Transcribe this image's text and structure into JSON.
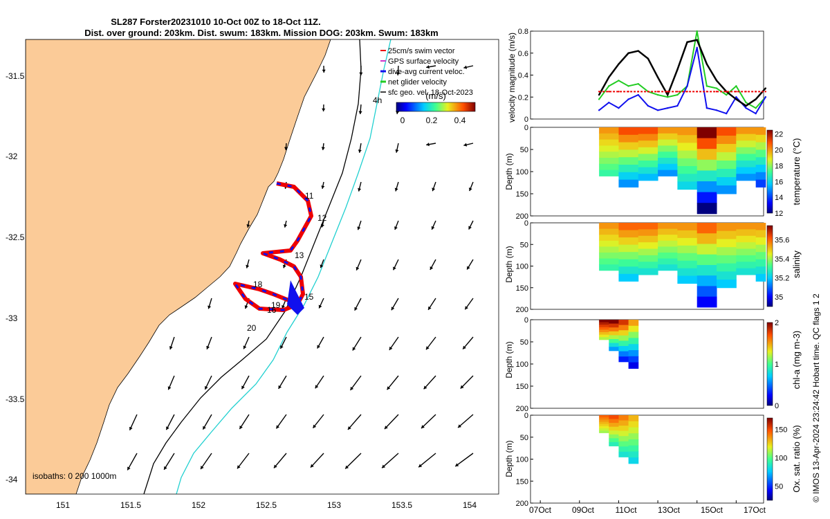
{
  "title": {
    "line1": "SL287 Forster20231010 10-Oct 00Z to 18-Oct 11Z.",
    "line2": "Dist. over ground: 203km. Dist. swum: 183km. Mission DOG: 203km. Swum: 183km"
  },
  "map": {
    "legend": [
      "25cm/s swim vector",
      "GPS surface velocity",
      "dive-avg current veloc.",
      "net glider velocity",
      "sfc geo. vel. 18-Oct-2023"
    ],
    "colorbar_label": "(m/s)",
    "colorbar_ticks": [
      "0",
      "0.2",
      "0.4"
    ],
    "isobaths_label": "isobaths: 0   200  1000m",
    "day_labels": [
      "4h",
      "11",
      "12",
      "13",
      "15",
      "18",
      "19",
      "16",
      "20"
    ],
    "x_ticks": [
      "151",
      "151.5",
      "152",
      "152.5",
      "153",
      "153.5",
      "154"
    ],
    "y_ticks": [
      "-31.5",
      "-32",
      "-32.5",
      "-33",
      "-33.5",
      "-34"
    ],
    "colors": {
      "land": "#fbcb98",
      "isobath_200": "#000000",
      "isobath_1000": "#20d0d0",
      "track_red": "#ee0000",
      "track_blue": "#1010ee",
      "track_green": "#22cc22"
    }
  },
  "panels": {
    "velocity": {
      "ylabel": "velocity magnitude (m/s)",
      "y_ticks": [
        "0",
        "0.2",
        "0.4",
        "0.6",
        "0.8"
      ]
    },
    "temperature": {
      "ylabel": "Depth (m)",
      "cb_label": "temperature (°C)",
      "cb_ticks": [
        "12",
        "14",
        "16",
        "18",
        "20",
        "22"
      ],
      "y_ticks": [
        "0",
        "50",
        "100",
        "150",
        "200"
      ]
    },
    "salinity": {
      "ylabel": "Depth (m)",
      "cb_label": "salinity",
      "cb_ticks": [
        "35",
        "35.2",
        "35.4",
        "35.6"
      ],
      "y_ticks": [
        "0",
        "50",
        "100",
        "150",
        "200"
      ]
    },
    "chla": {
      "ylabel": "Depth (m)",
      "cb_label": "chl-a (mg m-3)",
      "cb_ticks": [
        "0",
        "1",
        "2"
      ],
      "y_ticks": [
        "0",
        "50",
        "100",
        "150",
        "200"
      ]
    },
    "oxygen": {
      "ylabel": "Depth (m)",
      "cb_label": "Ox. sat. ratio (%)",
      "cb_ticks": [
        "50",
        "100",
        "150"
      ],
      "y_ticks": [
        "0",
        "50",
        "100",
        "150",
        "200"
      ]
    },
    "x_ticks": [
      "07Oct",
      "09Oct",
      "11Oct",
      "13Oct",
      "15Oct",
      "17Oct"
    ]
  },
  "credit": "© IMOS 13-Apr-2024 23:24:42 Hobart time. QC flags 1  2",
  "chart_data": [
    {
      "type": "line",
      "title": "",
      "xlabel": "",
      "ylabel": "velocity magnitude (m/s)",
      "ylim": [
        0,
        0.8
      ],
      "x": [
        "10Oct",
        "10.5Oct",
        "11Oct",
        "11.5Oct",
        "12Oct",
        "12.5Oct",
        "13Oct",
        "13.5Oct",
        "14Oct",
        "14.5Oct",
        "15Oct",
        "15.5Oct",
        "16Oct",
        "16.5Oct",
        "17Oct",
        "17.5Oct",
        "18Oct",
        "18.5Oct"
      ],
      "series": [
        {
          "name": "net glider velocity",
          "color": "#22cc22",
          "values": [
            0.18,
            0.3,
            0.35,
            0.3,
            0.32,
            0.25,
            0.22,
            0.2,
            0.22,
            0.3,
            0.8,
            0.3,
            0.28,
            0.22,
            0.3,
            0.15,
            0.1,
            0.2
          ]
        },
        {
          "name": "dive-avg current veloc.",
          "color": "#1010ee",
          "values": [
            0.08,
            0.15,
            0.1,
            0.18,
            0.22,
            0.12,
            0.08,
            0.1,
            0.12,
            0.3,
            0.65,
            0.1,
            0.08,
            0.05,
            0.2,
            0.1,
            0.05,
            0.2
          ]
        },
        {
          "name": "sfc geo. vel.",
          "color": "#000000",
          "values": [
            0.22,
            0.38,
            0.5,
            0.6,
            0.62,
            0.55,
            0.38,
            0.22,
            0.45,
            0.7,
            0.72,
            0.5,
            0.35,
            0.25,
            0.18,
            0.12,
            0.18,
            0.28
          ]
        },
        {
          "name": "25cm/s swim vector",
          "color": "#ee0000",
          "values": [
            0.25,
            0.25,
            0.25,
            0.25,
            0.25,
            0.25,
            0.25,
            0.25,
            0.25,
            0.25,
            0.25,
            0.25,
            0.25,
            0.25,
            0.25,
            0.25,
            0.25,
            0.25
          ]
        }
      ]
    },
    {
      "type": "heatmap",
      "title": "",
      "ylabel": "Depth (m)",
      "cb_label": "temperature (°C)",
      "ylim": [
        200,
        0
      ],
      "clim": [
        12,
        22.5
      ],
      "x": [
        "10Oct",
        "11Oct",
        "12Oct",
        "13Oct",
        "14Oct",
        "15Oct",
        "16Oct",
        "17Oct",
        "18Oct"
      ],
      "max_depth": [
        110,
        135,
        120,
        110,
        140,
        195,
        150,
        120,
        135
      ],
      "surface_values": [
        20,
        21,
        21,
        20,
        20,
        22.5,
        21,
        20,
        20
      ],
      "bottom_values": [
        17,
        15,
        15.5,
        15,
        16,
        12,
        15,
        15,
        14
      ]
    },
    {
      "type": "heatmap",
      "title": "",
      "ylabel": "Depth (m)",
      "cb_label": "salinity",
      "ylim": [
        200,
        0
      ],
      "clim": [
        34.9,
        35.75
      ],
      "x": [
        "10Oct",
        "11Oct",
        "12Oct",
        "13Oct",
        "14Oct",
        "15Oct",
        "16Oct",
        "17Oct",
        "18Oct"
      ],
      "max_depth": [
        110,
        135,
        120,
        110,
        140,
        195,
        150,
        120,
        135
      ],
      "surface_values": [
        35.55,
        35.6,
        35.6,
        35.55,
        35.55,
        35.6,
        35.55,
        35.55,
        35.55
      ],
      "bottom_values": [
        35.3,
        35.2,
        35.25,
        35.25,
        35.2,
        35.0,
        35.2,
        35.25,
        35.2
      ]
    },
    {
      "type": "heatmap",
      "title": "",
      "ylabel": "Depth (m)",
      "cb_label": "chl-a (mg m-3)",
      "ylim": [
        200,
        0
      ],
      "clim": [
        0,
        2
      ],
      "x": [
        "10Oct",
        "10.5Oct",
        "11Oct",
        "11.5Oct"
      ],
      "max_depth": [
        45,
        70,
        95,
        110
      ],
      "surface_values": [
        2,
        2,
        1.8,
        1.5
      ],
      "bottom_values": [
        1.2,
        0.6,
        0.3,
        0.2
      ]
    },
    {
      "type": "heatmap",
      "title": "",
      "ylabel": "Depth (m)",
      "cb_label": "Ox. sat. ratio (%)",
      "ylim": [
        200,
        0
      ],
      "clim": [
        25,
        170
      ],
      "x": [
        "10Oct",
        "10.5Oct",
        "11Oct",
        "11.5Oct"
      ],
      "max_depth": [
        40,
        70,
        95,
        110
      ],
      "surface_values": [
        145,
        150,
        140,
        130
      ],
      "bottom_values": [
        110,
        90,
        85,
        80
      ]
    }
  ]
}
